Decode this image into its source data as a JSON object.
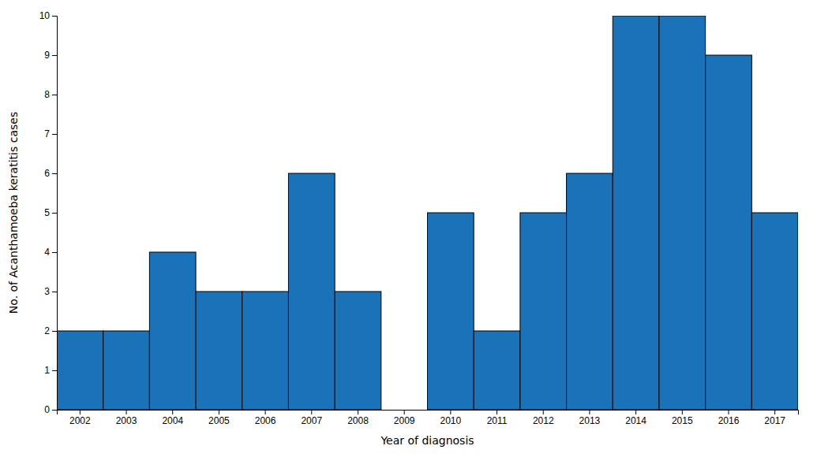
{
  "chart_data": {
    "type": "bar",
    "categories": [
      "2002",
      "2003",
      "2004",
      "2005",
      "2006",
      "2007",
      "2008",
      "2009",
      "2010",
      "2011",
      "2012",
      "2013",
      "2014",
      "2015",
      "2016",
      "2017"
    ],
    "values": [
      2,
      2,
      4,
      3,
      3,
      6,
      3,
      0,
      5,
      2,
      5,
      6,
      10,
      10,
      9,
      5
    ],
    "color": "#1a72b8",
    "xlabel": "Year of diagnosis",
    "ylabel": "No. of Acanthamoeba keratitis cases",
    "ylim": [
      0,
      10
    ],
    "yticks": [
      0,
      1,
      2,
      3,
      4,
      5,
      6,
      7,
      8,
      9,
      10
    ],
    "grid": false
  }
}
